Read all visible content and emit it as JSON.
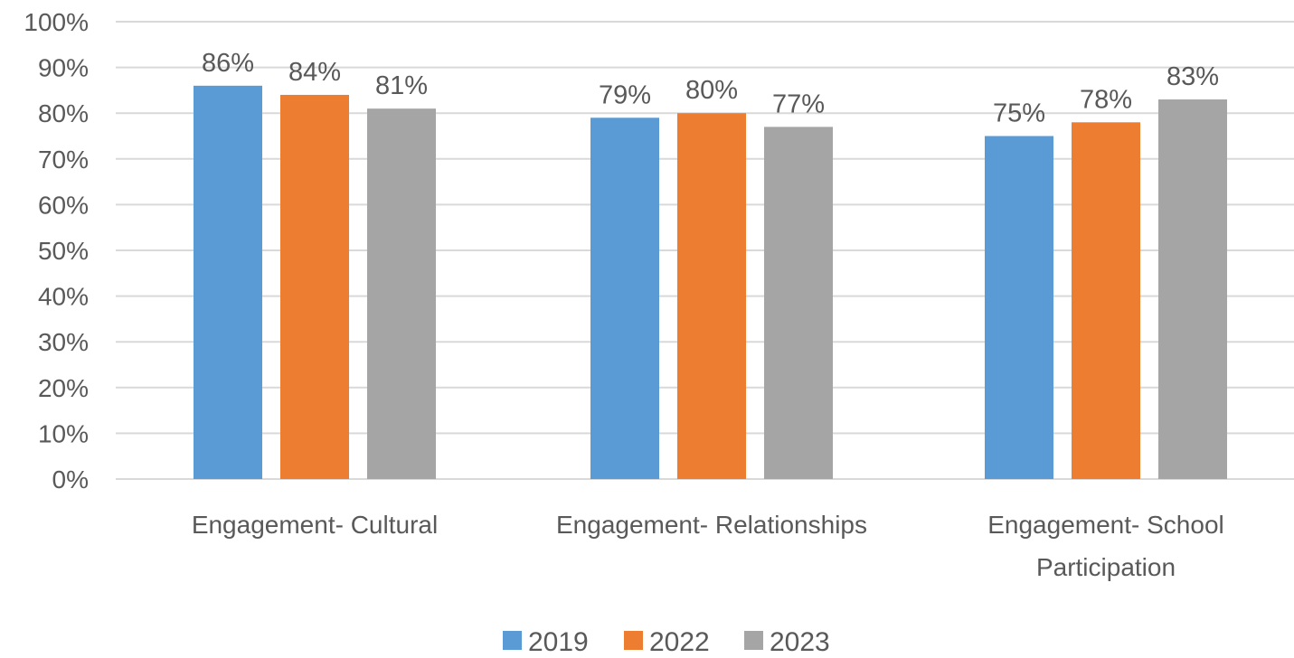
{
  "chart_data": {
    "type": "bar",
    "title": "",
    "xlabel": "",
    "ylabel": "",
    "ylim": [
      0,
      100
    ],
    "y_ticks": [
      "0%",
      "10%",
      "20%",
      "30%",
      "40%",
      "50%",
      "60%",
      "70%",
      "80%",
      "90%",
      "100%"
    ],
    "y_tick_values": [
      0,
      10,
      20,
      30,
      40,
      50,
      60,
      70,
      80,
      90,
      100
    ],
    "grid": true,
    "legend_position": "bottom",
    "categories": [
      [
        "Engagement- Cultural"
      ],
      [
        "Engagement- Relationships"
      ],
      [
        "Engagement- School",
        "Participation"
      ]
    ],
    "series": [
      {
        "name": "2019",
        "color": "#5b9bd5",
        "values": [
          86,
          79,
          75
        ],
        "labels": [
          "86%",
          "79%",
          "75%"
        ]
      },
      {
        "name": "2022",
        "color": "#ed7d31",
        "values": [
          84,
          80,
          78
        ],
        "labels": [
          "84%",
          "80%",
          "78%"
        ]
      },
      {
        "name": "2023",
        "color": "#a5a5a5",
        "values": [
          81,
          77,
          83
        ],
        "labels": [
          "81%",
          "77%",
          "83%"
        ]
      }
    ]
  }
}
